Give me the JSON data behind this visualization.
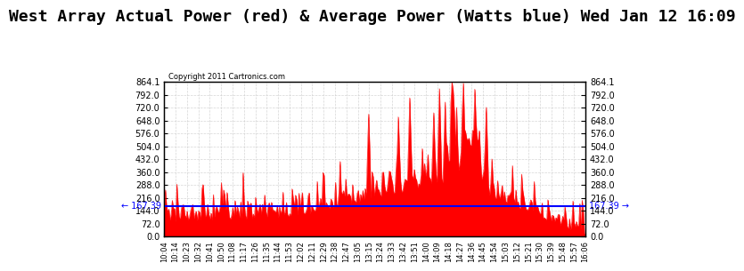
{
  "title": "West Array Actual Power (red) & Average Power (Watts blue) Wed Jan 12 16:09",
  "copyright": "Copyright 2011 Cartronics.com",
  "avg_power": 167.39,
  "ymin": 0.0,
  "ymax": 864.1,
  "yticks": [
    0.0,
    72.0,
    144.0,
    216.0,
    288.0,
    360.0,
    432.0,
    504.0,
    576.0,
    648.0,
    720.0,
    792.0,
    864.1
  ],
  "xtick_labels": [
    "10:04",
    "10:14",
    "10:23",
    "10:32",
    "10:41",
    "10:50",
    "11:08",
    "11:17",
    "11:26",
    "11:35",
    "11:44",
    "11:53",
    "12:02",
    "12:11",
    "12:29",
    "12:38",
    "12:47",
    "13:05",
    "13:15",
    "13:24",
    "13:33",
    "13:42",
    "13:51",
    "14:00",
    "14:09",
    "14:18",
    "14:27",
    "14:36",
    "14:45",
    "14:54",
    "15:03",
    "15:12",
    "15:21",
    "15:30",
    "15:39",
    "15:48",
    "15:57",
    "16:06"
  ],
  "bar_color": "#FF0000",
  "line_color": "#0000FF",
  "title_fontsize": 13,
  "bg_color": "#FFFFFF",
  "grid_color": "#CCCCCC",
  "annotation_color": "#0000FF"
}
